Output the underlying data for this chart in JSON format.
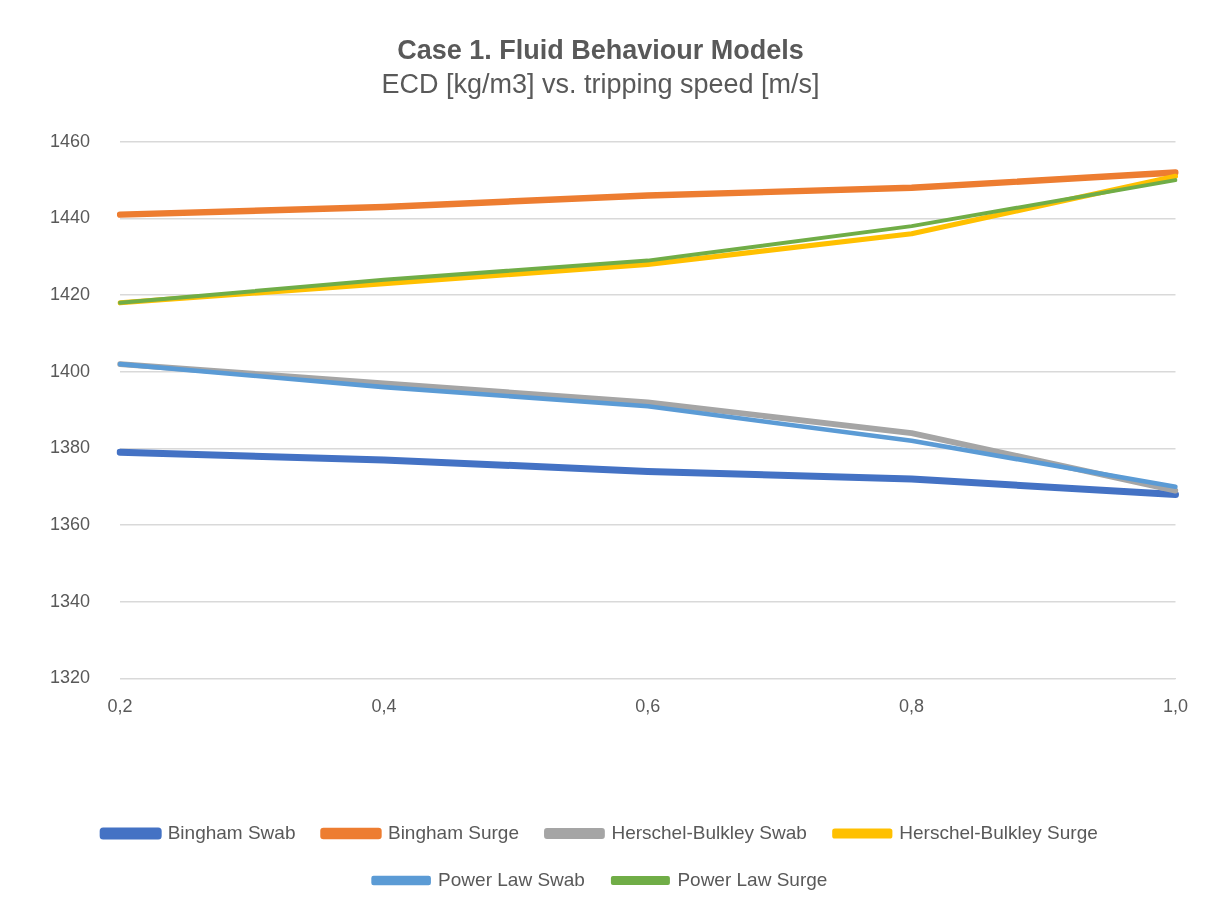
{
  "chart_data": {
    "type": "line",
    "title": "Case 1. Fluid Behaviour Models",
    "subtitle": "ECD [kg/m3] vs. tripping speed [m/s]",
    "categories": [
      "0,2",
      "0,4",
      "0,6",
      "0,8",
      "1,0"
    ],
    "series": [
      {
        "name": "Bingham Swab",
        "color": "#4472c4",
        "values": [
          1379,
          1377,
          1374,
          1372,
          1368
        ]
      },
      {
        "name": "Bingham Surge",
        "color": "#ed7d31",
        "values": [
          1441,
          1443,
          1446,
          1448,
          1452
        ]
      },
      {
        "name": "Herschel-Bulkley Swab",
        "color": "#a5a5a5",
        "values": [
          1402,
          1397,
          1392,
          1384,
          1369
        ]
      },
      {
        "name": "Herschel-Bulkley Surge",
        "color": "#ffc000",
        "values": [
          1418,
          1423,
          1428,
          1436,
          1451
        ]
      },
      {
        "name": "Power Law Swab",
        "color": "#5b9bd5",
        "values": [
          1402,
          1396,
          1391,
          1382,
          1370
        ]
      },
      {
        "name": "Power Law Surge",
        "color": "#70ad47",
        "values": [
          1418,
          1424,
          1429,
          1438,
          1450
        ]
      }
    ],
    "ylim": [
      1320,
      1460
    ],
    "yticks": [
      1320,
      1340,
      1360,
      1380,
      1400,
      1420,
      1440,
      1460
    ],
    "grid": "y",
    "legend": "bottom",
    "marker": "none",
    "line_style": "solid"
  }
}
